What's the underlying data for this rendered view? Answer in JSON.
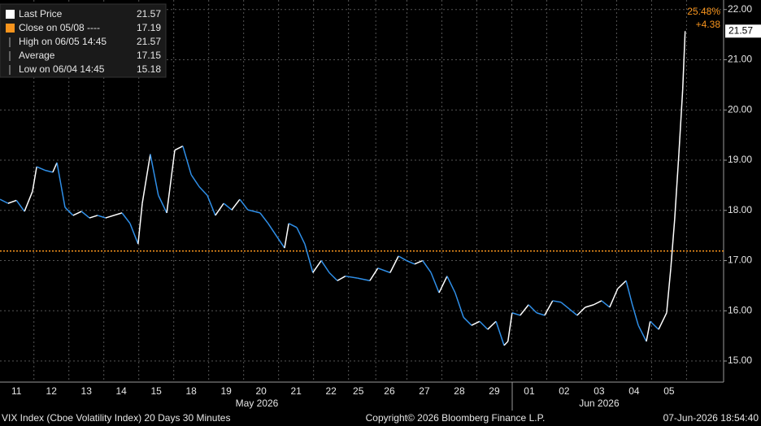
{
  "chart_data": {
    "type": "line",
    "legend": [
      {
        "name": "Last Price",
        "value": 21.57,
        "color": "#ffffff"
      },
      {
        "name": "Close on 05/08 ----",
        "value": 17.19,
        "color": "#f7941d"
      },
      {
        "name": "High on 06/05 14:45",
        "value": 21.57
      },
      {
        "name": "Average",
        "value": 17.15
      },
      {
        "name": "Low on 06/04 14:45",
        "value": 15.18
      }
    ],
    "x": [
      0,
      0.23,
      0.47,
      0.7,
      0.93,
      1.05,
      1.28,
      1.51,
      1.63,
      1.86,
      2.09,
      2.33,
      2.56,
      2.79,
      3.02,
      3.49,
      3.72,
      3.95,
      4.07,
      4.3,
      4.53,
      4.77,
      5,
      5.23,
      5.47,
      5.7,
      5.93,
      6.16,
      6.4,
      6.63,
      6.86,
      7.09,
      7.44,
      7.67,
      7.91,
      8.14,
      8.26,
      8.49,
      8.72,
      8.95,
      9.19,
      9.42,
      9.65,
      9.88,
      10.23,
      10.58,
      10.81,
      11.16,
      11.4,
      11.63,
      11.86,
      12.09,
      12.33,
      12.56,
      12.79,
      13.02,
      13.26,
      13.49,
      13.72,
      13.95,
      14.19,
      14.42,
      14.53,
      14.65,
      14.88,
      15.12,
      15.35,
      15.58,
      15.81,
      16.05,
      16.28,
      16.51,
      16.74,
      16.98,
      17.21,
      17.44,
      17.67,
      17.91,
      18.09,
      18.26,
      18.49,
      18.6,
      18.84,
      19.07,
      19.19,
      19.3,
      19.42,
      19.53,
      19.6
    ],
    "series": [
      {
        "name": "Last Price",
        "up_color": "#ffffff",
        "down_color": "#2f8fe8",
        "values": [
          18.22,
          18.14,
          18.2,
          17.98,
          18.38,
          18.87,
          18.8,
          18.76,
          18.95,
          18.06,
          17.9,
          17.98,
          17.85,
          17.9,
          17.85,
          17.95,
          17.74,
          17.33,
          18.14,
          19.12,
          18.3,
          17.95,
          19.2,
          19.28,
          18.71,
          18.47,
          18.3,
          17.9,
          18.14,
          18.01,
          18.22,
          18.01,
          17.95,
          17.74,
          17.49,
          17.25,
          17.74,
          17.66,
          17.33,
          16.76,
          17.0,
          16.76,
          16.6,
          16.69,
          16.65,
          16.6,
          16.85,
          16.76,
          17.09,
          17.0,
          16.93,
          17.0,
          16.76,
          16.36,
          16.69,
          16.36,
          15.87,
          15.71,
          15.79,
          15.63,
          15.79,
          15.31,
          15.39,
          15.96,
          15.91,
          16.12,
          15.96,
          15.91,
          16.2,
          16.17,
          16.04,
          15.91,
          16.07,
          16.12,
          16.2,
          16.07,
          16.44,
          16.6,
          16.12,
          15.71,
          15.39,
          15.79,
          15.63,
          15.96,
          16.85,
          17.82,
          19.12,
          20.41,
          21.57
        ]
      }
    ],
    "close_line": {
      "value": 17.19,
      "color": "#f7941d"
    },
    "annotations": [
      {
        "text": "25.48%",
        "color": "#f7941d"
      },
      {
        "text": "+4.38",
        "color": "#f7941d"
      }
    ],
    "last_tag": 21.57,
    "xlim": [
      0,
      20.7
    ],
    "ylim": [
      14.58,
      22.19
    ],
    "yticks": [
      {
        "value": 15,
        "label": "15.00"
      },
      {
        "value": 16,
        "label": "16.00"
      },
      {
        "value": 17,
        "label": "17.00"
      },
      {
        "value": 18,
        "label": "18.00"
      },
      {
        "value": 19,
        "label": "19.00"
      },
      {
        "value": 20,
        "label": "20.00"
      },
      {
        "value": 21,
        "label": "21.00"
      },
      {
        "value": 22,
        "label": "22.00"
      }
    ],
    "xticks": [
      {
        "value": 0.47,
        "label": "11"
      },
      {
        "value": 1.47,
        "label": "12"
      },
      {
        "value": 2.47,
        "label": "13"
      },
      {
        "value": 3.47,
        "label": "14"
      },
      {
        "value": 4.47,
        "label": "15"
      },
      {
        "value": 5.47,
        "label": "18"
      },
      {
        "value": 6.47,
        "label": "19"
      },
      {
        "value": 7.47,
        "label": "20"
      },
      {
        "value": 8.47,
        "label": "21"
      },
      {
        "value": 9.47,
        "label": "22"
      },
      {
        "value": 10.25,
        "label": "25"
      },
      {
        "value": 11.14,
        "label": "26"
      },
      {
        "value": 12.14,
        "label": "27"
      },
      {
        "value": 13.14,
        "label": "28"
      },
      {
        "value": 14.14,
        "label": "29"
      },
      {
        "value": 15.14,
        "label": "01"
      },
      {
        "value": 16.14,
        "label": "02"
      },
      {
        "value": 17.14,
        "label": "03"
      },
      {
        "value": 18.14,
        "label": "04"
      },
      {
        "value": 19.14,
        "label": "05"
      }
    ],
    "months": [
      {
        "value": 7.35,
        "label": "May 2026"
      },
      {
        "value": 17.14,
        "label": "Jun 2026"
      }
    ],
    "grid": true,
    "footer": {
      "left": "VIX Index (Cboe Volatility Index) 20 Days 30 Minutes",
      "center": "Copyright© 2026 Bloomberg Finance L.P.",
      "right": "07-Jun-2026 18:54:40"
    }
  }
}
